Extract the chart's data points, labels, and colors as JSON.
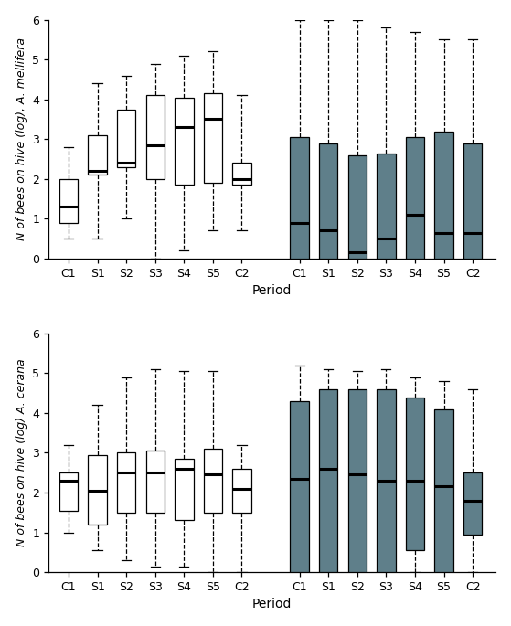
{
  "mellifera": {
    "white_boxes": [
      {
        "whislo": 0.5,
        "q1": 0.9,
        "med": 1.3,
        "q3": 2.0,
        "whishi": 2.8,
        "label": "C1"
      },
      {
        "whislo": 0.5,
        "q1": 2.1,
        "med": 2.2,
        "q3": 3.1,
        "whishi": 4.4,
        "label": "S1"
      },
      {
        "whislo": 1.0,
        "q1": 2.3,
        "med": 2.4,
        "q3": 3.75,
        "whishi": 4.6,
        "label": "S2"
      },
      {
        "whislo": 0.0,
        "q1": 2.0,
        "med": 2.85,
        "q3": 4.1,
        "whishi": 4.9,
        "label": "S3"
      },
      {
        "whislo": 0.2,
        "q1": 1.85,
        "med": 3.3,
        "q3": 4.05,
        "whishi": 5.1,
        "label": "S4"
      },
      {
        "whislo": 0.7,
        "q1": 1.9,
        "med": 3.5,
        "q3": 4.15,
        "whishi": 5.2,
        "label": "S5"
      },
      {
        "whislo": 0.7,
        "q1": 1.85,
        "med": 2.0,
        "q3": 2.4,
        "whishi": 4.1,
        "label": "C2"
      }
    ],
    "gray_boxes": [
      {
        "whislo": 0.0,
        "q1": 0.0,
        "med": 0.9,
        "q3": 3.05,
        "whishi": 6.0,
        "label": "C1"
      },
      {
        "whislo": 0.0,
        "q1": 0.0,
        "med": 0.7,
        "q3": 2.9,
        "whishi": 6.0,
        "label": "S1"
      },
      {
        "whislo": 0.0,
        "q1": 0.0,
        "med": 0.15,
        "q3": 2.6,
        "whishi": 6.0,
        "label": "S2"
      },
      {
        "whislo": 0.0,
        "q1": 0.0,
        "med": 0.5,
        "q3": 2.65,
        "whishi": 5.8,
        "label": "S3"
      },
      {
        "whislo": 0.0,
        "q1": 0.0,
        "med": 1.1,
        "q3": 3.05,
        "whishi": 5.7,
        "label": "S4"
      },
      {
        "whislo": 0.0,
        "q1": 0.0,
        "med": 0.65,
        "q3": 3.2,
        "whishi": 5.5,
        "label": "S5"
      },
      {
        "whislo": 0.0,
        "q1": 0.0,
        "med": 0.65,
        "q3": 2.9,
        "whishi": 5.5,
        "label": "C2"
      }
    ]
  },
  "cerana": {
    "white_boxes": [
      {
        "whislo": 1.0,
        "q1": 1.55,
        "med": 2.3,
        "q3": 2.5,
        "whishi": 3.2,
        "label": "C1"
      },
      {
        "whislo": 0.55,
        "q1": 1.2,
        "med": 2.05,
        "q3": 2.95,
        "whishi": 4.2,
        "label": "S1"
      },
      {
        "whislo": 0.3,
        "q1": 1.5,
        "med": 2.5,
        "q3": 3.0,
        "whishi": 4.9,
        "label": "S2"
      },
      {
        "whislo": 0.15,
        "q1": 1.5,
        "med": 2.5,
        "q3": 3.05,
        "whishi": 5.1,
        "label": "S3"
      },
      {
        "whislo": 0.15,
        "q1": 1.3,
        "med": 2.6,
        "q3": 2.85,
        "whishi": 5.05,
        "label": "S4"
      },
      {
        "whislo": 0.0,
        "q1": 1.5,
        "med": 2.45,
        "q3": 3.1,
        "whishi": 5.05,
        "label": "S5"
      },
      {
        "whislo": 0.0,
        "q1": 1.5,
        "med": 2.1,
        "q3": 2.6,
        "whishi": 3.2,
        "label": "C2"
      }
    ],
    "gray_boxes": [
      {
        "whislo": 0.0,
        "q1": 0.0,
        "med": 2.35,
        "q3": 4.3,
        "whishi": 5.2,
        "label": "C1"
      },
      {
        "whislo": 0.0,
        "q1": 0.0,
        "med": 2.6,
        "q3": 4.6,
        "whishi": 5.1,
        "label": "S1"
      },
      {
        "whislo": 0.0,
        "q1": 0.0,
        "med": 2.45,
        "q3": 4.6,
        "whishi": 5.05,
        "label": "S2"
      },
      {
        "whislo": 0.0,
        "q1": 0.0,
        "med": 2.3,
        "q3": 4.6,
        "whishi": 5.1,
        "label": "S3"
      },
      {
        "whislo": 0.0,
        "q1": 0.55,
        "med": 2.3,
        "q3": 4.4,
        "whishi": 4.9,
        "label": "S4"
      },
      {
        "whislo": 0.0,
        "q1": 0.0,
        "med": 2.15,
        "q3": 4.1,
        "whishi": 4.8,
        "label": "S5"
      },
      {
        "whislo": 0.0,
        "q1": 0.95,
        "med": 1.8,
        "q3": 2.5,
        "whishi": 4.6,
        "label": "C2"
      }
    ]
  },
  "categories": [
    "C1",
    "S1",
    "S2",
    "S3",
    "S4",
    "S5",
    "C2"
  ],
  "white_color": "#FFFFFF",
  "gray_color": "#5f7f8a",
  "ylabel_mellifera": "N of bees on hive (log), A. mellifera",
  "ylabel_cerana": "N of bees on hive (log) A. cerana",
  "xlabel": "Period",
  "ylim": [
    0,
    6
  ],
  "yticks": [
    0,
    1,
    2,
    3,
    4,
    5,
    6
  ]
}
